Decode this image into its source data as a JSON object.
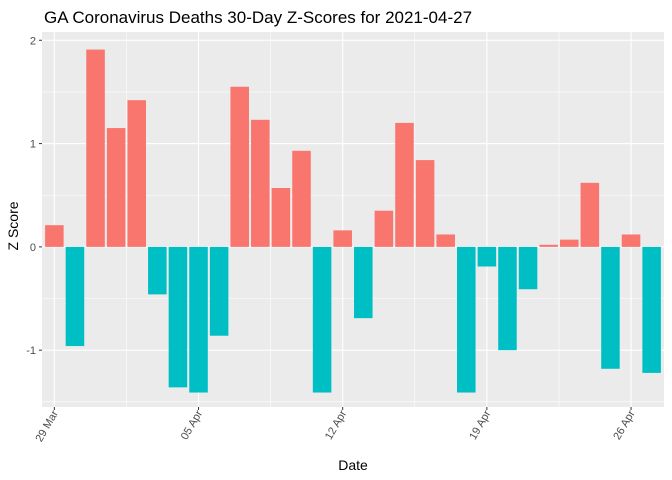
{
  "chart_data": {
    "type": "bar",
    "title": "GA Coronavirus Deaths 30-Day Z-Scores for 2021-04-27",
    "xlabel": "Date",
    "ylabel": "Z Score",
    "x": [
      "2021-03-29",
      "2021-03-30",
      "2021-03-31",
      "2021-04-01",
      "2021-04-02",
      "2021-04-03",
      "2021-04-04",
      "2021-04-05",
      "2021-04-06",
      "2021-04-07",
      "2021-04-08",
      "2021-04-09",
      "2021-04-10",
      "2021-04-11",
      "2021-04-12",
      "2021-04-13",
      "2021-04-14",
      "2021-04-15",
      "2021-04-16",
      "2021-04-17",
      "2021-04-18",
      "2021-04-19",
      "2021-04-20",
      "2021-04-21",
      "2021-04-22",
      "2021-04-23",
      "2021-04-24",
      "2021-04-25",
      "2021-04-26",
      "2021-04-27"
    ],
    "values": [
      0.21,
      -0.96,
      1.91,
      1.15,
      1.42,
      -0.46,
      -1.36,
      -1.41,
      -0.86,
      1.55,
      1.23,
      0.57,
      0.93,
      -1.41,
      0.16,
      -0.69,
      0.35,
      1.2,
      0.84,
      0.12,
      -1.41,
      -0.19,
      -1.0,
      -0.41,
      0.02,
      0.07,
      0.62,
      -1.18,
      0.12,
      -1.22
    ],
    "x_ticks": [
      "29 Mar",
      "05 Apr",
      "12 Apr",
      "19 Apr",
      "26 Apr"
    ],
    "y_ticks": [
      "-1",
      "0",
      "1",
      "2"
    ],
    "ylim": [
      -1.55,
      2.08
    ],
    "grid": true,
    "legend": "none",
    "colors": {
      "positive": "#F8766D",
      "negative": "#00BFC4",
      "panel": "#EBEBEB",
      "grid": "#FFFFFF",
      "tick_text": "#4D4D4D"
    }
  }
}
